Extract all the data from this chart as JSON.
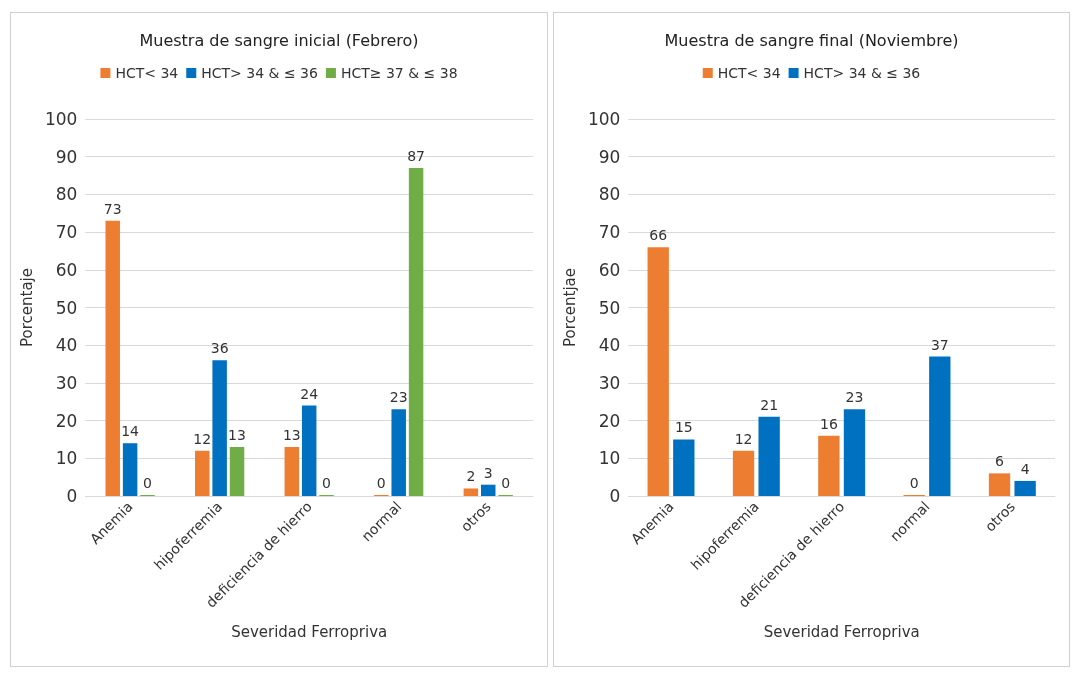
{
  "chart_data": [
    {
      "type": "bar",
      "title": "Muestra de sangre inicial (Febrero)",
      "xlabel": "Severidad Ferropriva",
      "ylabel": "Porcentaje",
      "categories": [
        "Anemia",
        "hipoferremia",
        "deficiencia de hierro",
        "normal",
        "otros"
      ],
      "series": [
        {
          "name": "HCT< 34",
          "color": "#ed7d31",
          "values": [
            73,
            12,
            13,
            0,
            2
          ]
        },
        {
          "name": "HCT> 34 & ≤ 36",
          "color": "#0070c0",
          "values": [
            14,
            36,
            24,
            23,
            3
          ]
        },
        {
          "name": "HCT≥ 37 & ≤ 38",
          "color": "#70ad47",
          "values": [
            0,
            13,
            0,
            87,
            0
          ]
        }
      ],
      "ylim": [
        0,
        100
      ],
      "yticks": [
        0,
        10,
        20,
        30,
        40,
        50,
        60,
        70,
        80,
        90,
        100
      ],
      "grid": "y",
      "legend": "top",
      "data_labels": true
    },
    {
      "type": "bar",
      "title": "Muestra de sangre final (Noviembre)",
      "xlabel": "Severidad Ferropriva",
      "ylabel": "Porcentjae",
      "categories": [
        "Anemia",
        "hipoferremia",
        "deficiencia de hierro",
        "normal",
        "otros"
      ],
      "series": [
        {
          "name": "HCT< 34",
          "color": "#ed7d31",
          "values": [
            66,
            12,
            16,
            0,
            6
          ]
        },
        {
          "name": "HCT> 34 & ≤ 36",
          "color": "#0070c0",
          "values": [
            15,
            21,
            23,
            37,
            4
          ]
        }
      ],
      "ylim": [
        0,
        100
      ],
      "yticks": [
        0,
        10,
        20,
        30,
        40,
        50,
        60,
        70,
        80,
        90,
        100
      ],
      "grid": "y",
      "legend": "top",
      "data_labels": true
    }
  ]
}
